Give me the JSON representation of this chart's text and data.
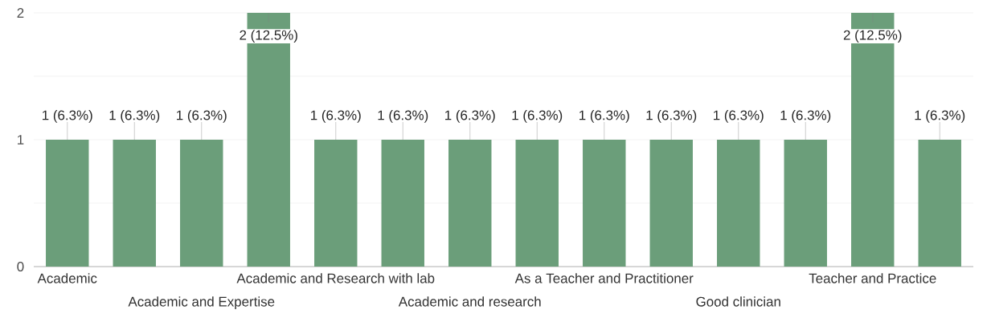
{
  "chart_data": {
    "type": "bar",
    "categories": [
      "Academic",
      null,
      "Academic and Expertise",
      null,
      "Academic and Research with lab",
      null,
      "Academic and research",
      null,
      "As a Teacher and Practitioner",
      null,
      "Good clinician",
      null,
      "Teacher and Practice",
      null
    ],
    "values": [
      1,
      1,
      1,
      2,
      1,
      1,
      1,
      1,
      1,
      1,
      1,
      1,
      2,
      1
    ],
    "value_labels": [
      "1 (6.3%)",
      "1 (6.3%)",
      "1 (6.3%)",
      "2 (12.5%)",
      "1 (6.3%)",
      "1 (6.3%)",
      "1 (6.3%)",
      "1 (6.3%)",
      "1 (6.3%)",
      "1 (6.3%)",
      "1 (6.3%)",
      "1 (6.3%)",
      "2 (12.5%)",
      "1 (6.3%)"
    ],
    "color": "#6b9e7a",
    "ylim": [
      0,
      2
    ],
    "yticks": [
      0,
      {
        "value": 0.5,
        "label": null
      },
      1,
      {
        "value": 1.5,
        "label": null
      },
      2
    ],
    "grid": "y"
  }
}
